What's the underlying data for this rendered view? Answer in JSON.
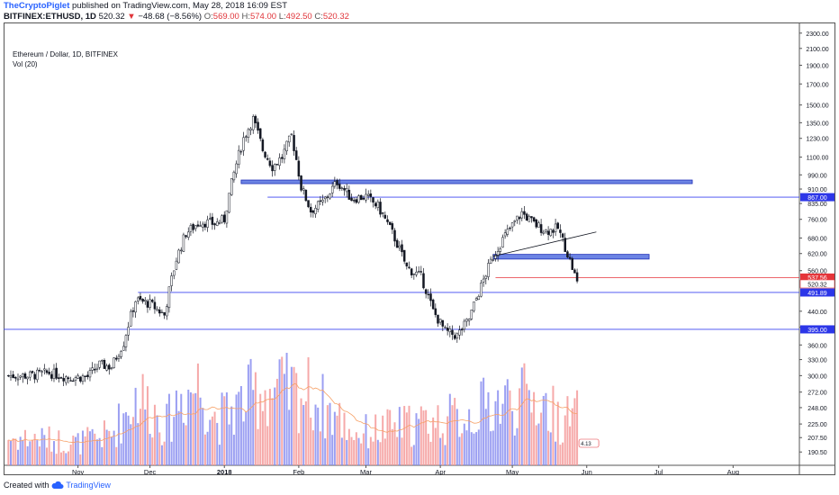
{
  "header": {
    "author": "TheCryptoPiglet",
    "published": "published on TradingView.com, May 28, 2018 16:09 EST",
    "symbol": "BITFINEX:ETHUSD, 1D",
    "price": "520.32",
    "change_arrow": "▼",
    "change": "−48.68 (−8.56%)",
    "o_label": "O:",
    "o_value": "569.00",
    "h_label": "H:",
    "h_value": "574.00",
    "l_label": "L:",
    "l_value": "492.50",
    "c_label": "C:",
    "c_value": "520.32"
  },
  "legend": {
    "title": "Ethereum / Dollar, 1D, BITFINEX",
    "volume": "Vol (20)"
  },
  "footer": {
    "created_with": "Created with",
    "brand": "TradingView",
    "brand_icon": "cloud-icon"
  },
  "colors": {
    "up": "#8a8ef0",
    "down": "#f59a9a",
    "candle": "#131722",
    "level_line": "#3b44f0",
    "zone": "#3b5bdb",
    "sma": "#f6a066",
    "trend": "#131722",
    "price_label": "#e5353a",
    "level_label": "#2c36e8"
  },
  "chart_data": {
    "type": "candlestick",
    "scale": "log",
    "interval": "1D",
    "ylim": [
      176,
      2450
    ],
    "y_ticks": [
      "2300.00",
      "2100.00",
      "1900.00",
      "1700.00",
      "1500.00",
      "1350.00",
      "1230.00",
      "1100.00",
      "990.00",
      "910.00",
      "835.00",
      "760.00",
      "680.00",
      "620.00",
      "560.00",
      "520.32",
      "440.00",
      "400.00",
      "360.00",
      "330.00",
      "300.00",
      "272.00",
      "248.00",
      "225.00",
      "207.50",
      "190.50"
    ],
    "x_ticks": [
      "Nov",
      "Dec",
      "2018",
      "Feb",
      "Mar",
      "Apr",
      "May",
      "Jun",
      "Jul",
      "Aug"
    ],
    "price_series": [
      {
        "date": "2017-10-12",
        "value": 300
      },
      {
        "date": "2017-10-20",
        "value": 305
      },
      {
        "date": "2017-10-28",
        "value": 297
      },
      {
        "date": "2017-11-05",
        "value": 298
      },
      {
        "date": "2017-11-10",
        "value": 320
      },
      {
        "date": "2017-11-15",
        "value": 316
      },
      {
        "date": "2017-11-20",
        "value": 365
      },
      {
        "date": "2017-11-25",
        "value": 470
      },
      {
        "date": "2017-12-01",
        "value": 460
      },
      {
        "date": "2017-12-07",
        "value": 430
      },
      {
        "date": "2017-12-12",
        "value": 600
      },
      {
        "date": "2017-12-16",
        "value": 700
      },
      {
        "date": "2017-12-22",
        "value": 750
      },
      {
        "date": "2017-12-28",
        "value": 740
      },
      {
        "date": "2018-01-01",
        "value": 760
      },
      {
        "date": "2018-01-05",
        "value": 1000
      },
      {
        "date": "2018-01-09",
        "value": 1230
      },
      {
        "date": "2018-01-13",
        "value": 1380
      },
      {
        "date": "2018-01-17",
        "value": 1150
      },
      {
        "date": "2018-01-21",
        "value": 1040
      },
      {
        "date": "2018-01-25",
        "value": 1100
      },
      {
        "date": "2018-01-29",
        "value": 1250
      },
      {
        "date": "2018-02-02",
        "value": 920
      },
      {
        "date": "2018-02-06",
        "value": 800
      },
      {
        "date": "2018-02-11",
        "value": 840
      },
      {
        "date": "2018-02-17",
        "value": 950
      },
      {
        "date": "2018-02-23",
        "value": 860
      },
      {
        "date": "2018-03-01",
        "value": 870
      },
      {
        "date": "2018-03-06",
        "value": 820
      },
      {
        "date": "2018-03-12",
        "value": 700
      },
      {
        "date": "2018-03-18",
        "value": 570
      },
      {
        "date": "2018-03-24",
        "value": 540
      },
      {
        "date": "2018-03-29",
        "value": 440
      },
      {
        "date": "2018-04-03",
        "value": 390
      },
      {
        "date": "2018-04-08",
        "value": 380
      },
      {
        "date": "2018-04-13",
        "value": 420
      },
      {
        "date": "2018-04-18",
        "value": 510
      },
      {
        "date": "2018-04-23",
        "value": 610
      },
      {
        "date": "2018-04-28",
        "value": 690
      },
      {
        "date": "2018-05-05",
        "value": 790
      },
      {
        "date": "2018-05-10",
        "value": 740
      },
      {
        "date": "2018-05-15",
        "value": 710
      },
      {
        "date": "2018-05-20",
        "value": 720
      },
      {
        "date": "2018-05-24",
        "value": 620
      },
      {
        "date": "2018-05-28",
        "value": 520.32
      }
    ],
    "volume_series": [
      {
        "date": "2017-10-15",
        "value": 0.3
      },
      {
        "date": "2017-11-01",
        "value": 0.25
      },
      {
        "date": "2017-11-15",
        "value": 0.35
      },
      {
        "date": "2017-11-26",
        "value": 0.8
      },
      {
        "date": "2017-12-08",
        "value": 0.45
      },
      {
        "date": "2017-12-13",
        "value": 0.75
      },
      {
        "date": "2017-12-21",
        "value": 0.9
      },
      {
        "date": "2017-12-29",
        "value": 0.5
      },
      {
        "date": "2018-01-09",
        "value": 0.7
      },
      {
        "date": "2018-01-16",
        "value": 0.85
      },
      {
        "date": "2018-02-05",
        "value": 0.8
      },
      {
        "date": "2018-02-25",
        "value": 0.35
      },
      {
        "date": "2018-03-18",
        "value": 0.45
      },
      {
        "date": "2018-04-02",
        "value": 0.5
      },
      {
        "date": "2018-04-12",
        "value": 0.55
      },
      {
        "date": "2018-04-24",
        "value": 0.7
      },
      {
        "date": "2018-05-10",
        "value": 0.75
      },
      {
        "date": "2018-05-22",
        "value": 0.5
      },
      {
        "date": "2018-05-28",
        "value": 0.55
      }
    ],
    "volume_sma_label": "4.13",
    "horizontal_levels": [
      {
        "label": "867.00",
        "value": 867,
        "from": "2018-01-19"
      },
      {
        "label": "491.89",
        "value": 491.89,
        "from": "2017-11-26"
      },
      {
        "label": "395.00",
        "value": 395,
        "from": "2017-10-01"
      }
    ],
    "zones": [
      {
        "low": 940,
        "high": 960,
        "from": "2018-01-08",
        "to": "2018-07-15"
      },
      {
        "low": 600,
        "high": 617,
        "from": "2018-04-23",
        "to": "2018-06-27"
      }
    ],
    "current_price": {
      "label": "520.32",
      "value": 520.32
    },
    "marked_price": {
      "label": "537.56",
      "value": 537.56,
      "from": "2018-04-24"
    },
    "trendline": {
      "from_date": "2018-04-23",
      "from_value": 610,
      "to_date": "2018-06-05",
      "to_value": 705
    }
  }
}
